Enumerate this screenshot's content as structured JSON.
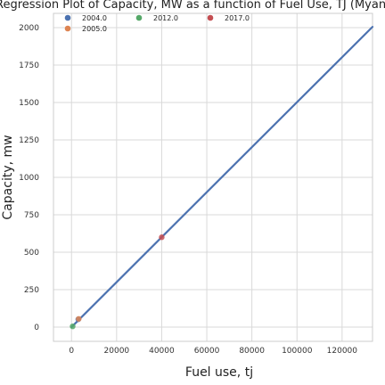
{
  "chart_data": {
    "type": "scatter",
    "title": "Regression Plot of Capacity, MW as a function of Fuel Use, TJ (Myanmar)",
    "xlabel": "Fuel use, tj",
    "ylabel": "Capacity, mw",
    "xlim": [
      -8000,
      133500
    ],
    "ylim": [
      -95,
      2095
    ],
    "x_ticks": [
      0,
      20000,
      40000,
      60000,
      80000,
      100000,
      120000
    ],
    "y_ticks": [
      0,
      250,
      500,
      750,
      1000,
      1250,
      1500,
      1750,
      2000
    ],
    "grid": true,
    "legend_position": "top-left",
    "series": [
      {
        "name": "2004.0",
        "color": "#4c72b0",
        "points": [
          [
            3000,
            52
          ]
        ]
      },
      {
        "name": "2005.0",
        "color": "#dd8452",
        "points": [
          [
            3200,
            55
          ]
        ]
      },
      {
        "name": "2012.0",
        "color": "#55a868",
        "points": [
          [
            500,
            5
          ]
        ]
      },
      {
        "name": "2017.0",
        "color": "#c44e52",
        "points": [
          [
            40000,
            600
          ]
        ]
      }
    ],
    "regression_line": {
      "color": "#4c72b0",
      "points": [
        [
          0,
          0
        ],
        [
          133500,
          2005
        ]
      ]
    }
  }
}
